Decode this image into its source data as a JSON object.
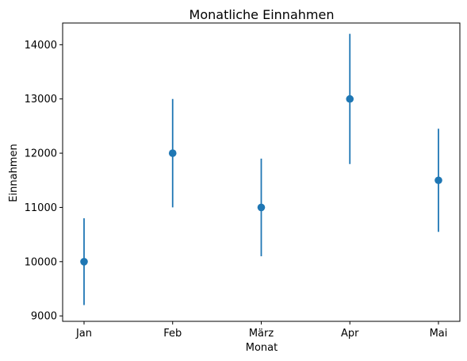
{
  "chart_data": {
    "type": "scatter",
    "title": "Monatliche Einnahmen",
    "xlabel": "Monat",
    "ylabel": "Einnahmen",
    "categories": [
      "Jan",
      "Feb",
      "März",
      "Apr",
      "Mai"
    ],
    "values": [
      10000,
      12000,
      11000,
      13000,
      11500
    ],
    "error": [
      800,
      1000,
      900,
      1200,
      950
    ],
    "ylim": [
      8900,
      14400
    ],
    "yticks": [
      9000,
      10000,
      11000,
      12000,
      13000,
      14000
    ],
    "grid": false,
    "legend": "none",
    "color": "#1f77b4"
  }
}
